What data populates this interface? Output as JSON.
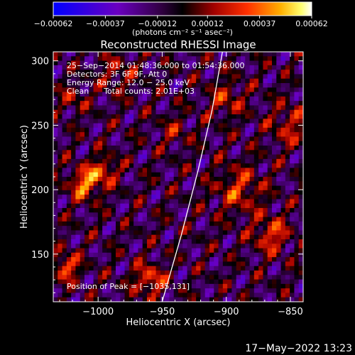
{
  "chart_data": {
    "type": "heatmap",
    "title": "Reconstructed RHESSI Image",
    "xlabel": "Heliocentric X (arcsec)",
    "ylabel": "Heliocentric Y (arcsec)",
    "xlim": [
      -1035,
      -840
    ],
    "ylim": [
      113,
      307
    ],
    "x_ticks": [
      -1000,
      -950,
      -900,
      -850
    ],
    "x_tick_labels": [
      "−1000",
      "−950",
      "−900",
      "−850"
    ],
    "y_ticks": [
      150,
      200,
      250,
      300
    ],
    "y_tick_labels": [
      "150",
      "200",
      "250",
      "300"
    ],
    "colorbar": {
      "range": [
        -0.00062,
        0.00062
      ],
      "ticks": [
        -0.00062,
        -0.00037,
        -0.00012,
        0.00012,
        0.00037,
        0.00062
      ],
      "tick_labels": [
        "−0.00062",
        "−0.00037",
        "−0.00012",
        "0.00012",
        "0.00037",
        "0.00062"
      ],
      "units": "(photons cm⁻² s⁻¹ asec⁻²)",
      "colors": [
        "#0000ff",
        "#5a00b8",
        "#4a0060",
        "#000000",
        "#8b0000",
        "#ff2a00",
        "#ff9a00",
        "#ffff60",
        "#ffffff"
      ]
    },
    "annotations": [
      "25−Sep−2014 01:48:36.000 to 01:54:36.000",
      "Detectors: 3F 6F 9F, Att 0",
      "Energy Range: 12.0 − 25.0 keV",
      "Clean      Total counts: 2.01E+03"
    ],
    "peak_label": "Position of Peak = [−1035,131]",
    "limb_curve": [
      [
        -950,
        113
      ],
      [
        -935,
        165
      ],
      [
        -922,
        215
      ],
      [
        -911,
        262
      ],
      [
        -903,
        307
      ]
    ],
    "grid": false
  },
  "footer": {
    "timestamp": "17−May−2022 13:23"
  }
}
